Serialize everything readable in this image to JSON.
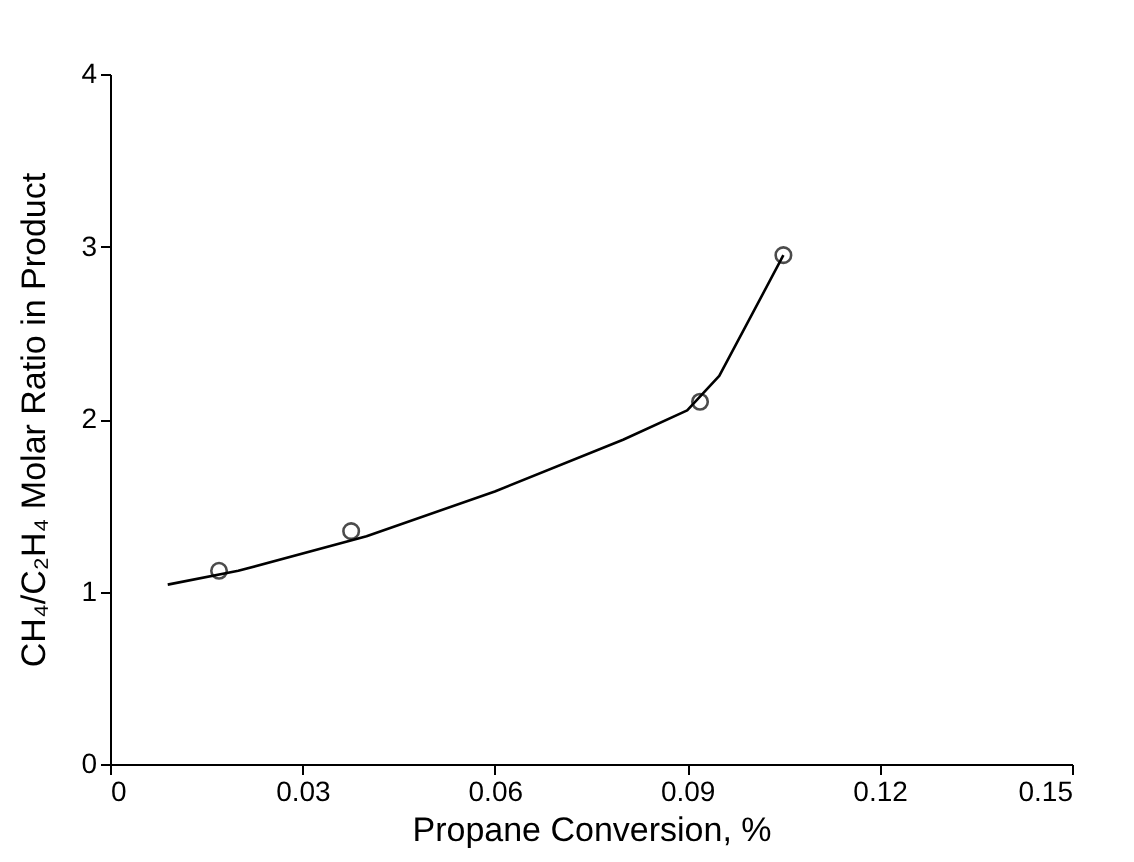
{
  "chart_data": {
    "type": "scatter",
    "xlabel": "Propane Conversion, %",
    "ylabel": "CH₄/C₂H₄ Molar Ratio in Product",
    "xlim": [
      0,
      0.15
    ],
    "ylim": [
      0,
      4
    ],
    "xticks": [
      0,
      0.03,
      0.06,
      0.09,
      0.12,
      0.15
    ],
    "yticks": [
      0,
      1,
      2,
      3,
      4
    ],
    "grid": false,
    "marker": "circle",
    "series": [
      {
        "color": "#000000",
        "x": [
          0.017,
          0.0376,
          0.092,
          0.105
        ],
        "values": [
          1.12,
          1.35,
          2.1,
          2.95
        ]
      },
      {
        "type": "line",
        "color": "#000000",
        "marker": "none",
        "line_style": "solid",
        "x": [
          0.009,
          0.02,
          0.04,
          0.06,
          0.08,
          0.09,
          0.095,
          0.105
        ],
        "values": [
          1.04,
          1.12,
          1.32,
          1.58,
          1.88,
          2.05,
          2.25,
          2.95
        ]
      }
    ]
  }
}
